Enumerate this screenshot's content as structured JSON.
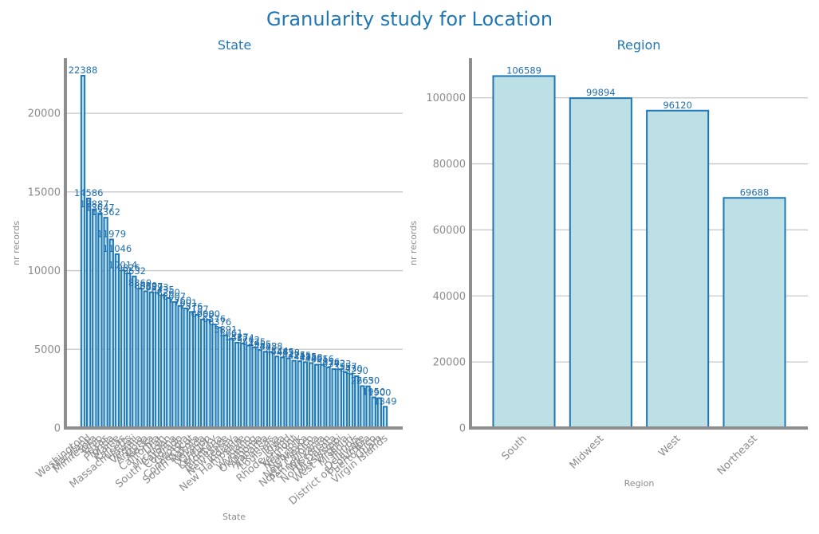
{
  "figure_title": "Granularity study for Location",
  "colors": {
    "title": "#1f77b4",
    "bar_fill": "#bde0e6",
    "bar_edge": "#1f77b4",
    "axis": "#8e8e8e",
    "grid": "#c8c8c8"
  },
  "chart_data": [
    {
      "type": "bar",
      "title": "State",
      "xlabel": "State",
      "ylabel": "nr records",
      "ylim": [
        0,
        23500
      ],
      "yticks": [
        0,
        5000,
        10000,
        15000,
        20000
      ],
      "grid": "horizontal",
      "categories": [
        "Washington",
        "Maryland",
        "Minnesota",
        "Ohio",
        "Texas",
        "Florida",
        "Maine",
        "Kansas",
        "Massachusetts",
        "Hawaii",
        "Virginia",
        "Arizona",
        "Alaska",
        "California",
        "Utah",
        "Michigan",
        "South Carolina",
        "Colorado",
        "Georgia",
        "Connecticut",
        "South Dakota",
        "Nevada",
        "Oregon",
        "Kentucky",
        "Montana",
        "Tennessee",
        "New Jersey",
        "Indiana",
        "New Hampshire",
        "Idaho",
        "Wyoming",
        "Oklahoma",
        "Alabama",
        "Arkansas",
        "Louisiana",
        "Iowa",
        "Rhode Island",
        "Vermont",
        "New York",
        "Nebraska",
        "New Mexico",
        "North Carolina",
        "Pennsylvania",
        "Wisconsin",
        "North Dakota",
        "Mississippi",
        "West Virginia",
        "Missouri",
        "Illinois",
        "Delaware",
        "District of Columbia",
        "Puerto Rico",
        "Guam",
        "Virgin Islands"
      ],
      "values": [
        22388,
        14586,
        13887,
        13647,
        13362,
        11979,
        11046,
        10014,
        9826,
        9632,
        8860,
        8689,
        8627,
        8593,
        8435,
        8260,
        8007,
        7760,
        7601,
        7376,
        7187,
        6900,
        6880,
        6576,
        6376,
        5891,
        5661,
        5427,
        5374,
        5242,
        5125,
        4955,
        4848,
        4838,
        4544,
        4485,
        4428,
        4275,
        4245,
        4185,
        4128,
        4025,
        4016,
        3856,
        3742,
        3733,
        3557,
        3430,
        3290,
        2663,
        2650,
        1950,
        1900,
        1349
      ],
      "value_labels": [
        "22388",
        "14586",
        "13887",
        "13647",
        "13362",
        "11979",
        "11046",
        "10014",
        "9826",
        "9632",
        "8860",
        "8689",
        "8627",
        "8593",
        "8435",
        "8260",
        "8007",
        "7760",
        "7601",
        "7376",
        "7187",
        "6900",
        "6880",
        "6576",
        "6376",
        "5891",
        "5661",
        "5427",
        "5374",
        "5242",
        "5125",
        "4955",
        "4848",
        "4838",
        "4544",
        "4485",
        "4428",
        "4275",
        "4245",
        "4185",
        "4128",
        "4025",
        "4016",
        "3856",
        "3742",
        "3733",
        "3557",
        "3430",
        "3290",
        "2663",
        "2650",
        "1950",
        "1900",
        "1349"
      ]
    },
    {
      "type": "bar",
      "title": "Region",
      "xlabel": "Region",
      "ylabel": "nr records",
      "ylim": [
        0,
        112000
      ],
      "yticks": [
        0,
        20000,
        40000,
        60000,
        80000,
        100000
      ],
      "grid": "horizontal",
      "categories": [
        "South",
        "Midwest",
        "West",
        "Northeast"
      ],
      "values": [
        106589,
        99894,
        96120,
        69688
      ],
      "value_labels": [
        "106589",
        "99894",
        "96120",
        "69688"
      ]
    }
  ]
}
